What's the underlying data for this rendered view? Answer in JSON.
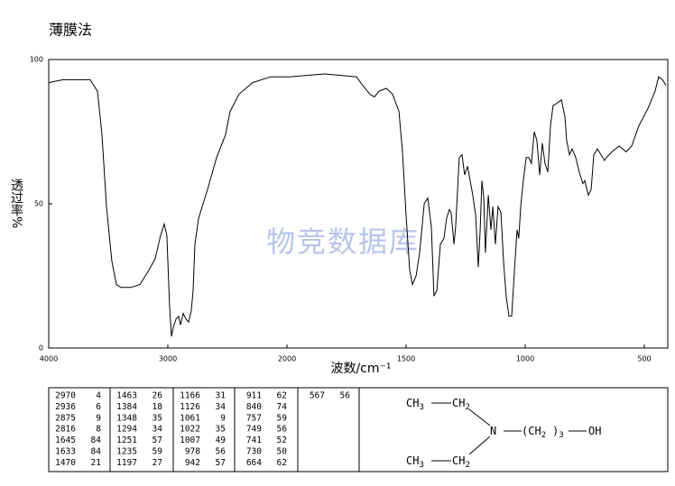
{
  "title": "薄膜法",
  "chart_data": {
    "type": "line",
    "color": "#000000",
    "ylabel": "透过率%",
    "xlabel": "波数/cm⁻¹",
    "watermark": "物竞数据库",
    "xlim": [
      4000,
      400
    ],
    "xticks": [
      4000,
      3000,
      2000,
      1500,
      1000,
      500
    ],
    "ylim": [
      0,
      100
    ],
    "yticks": [
      0,
      50,
      100
    ],
    "x": [
      4000,
      3879,
      3727,
      3652,
      3591,
      3553,
      3515,
      3470,
      3432,
      3394,
      3311,
      3235,
      3159,
      3106,
      3061,
      3030,
      3008,
      2985,
      2970,
      2955,
      2932,
      2909,
      2894,
      2871,
      2848,
      2826,
      2803,
      2788,
      2773,
      2742,
      2667,
      2591,
      2515,
      2477,
      2402,
      2288,
      2136,
      1992,
      1841,
      1708,
      1682,
      1652,
      1633,
      1614,
      1583,
      1557,
      1530,
      1515,
      1500,
      1485,
      1473,
      1458,
      1443,
      1424,
      1409,
      1394,
      1383,
      1371,
      1356,
      1341,
      1330,
      1318,
      1311,
      1299,
      1292,
      1277,
      1265,
      1254,
      1242,
      1231,
      1220,
      1208,
      1197,
      1189,
      1182,
      1174,
      1167,
      1155,
      1144,
      1136,
      1125,
      1114,
      1102,
      1091,
      1080,
      1068,
      1057,
      1045,
      1034,
      1027,
      1019,
      1008,
      996,
      985,
      974,
      962,
      951,
      939,
      928,
      917,
      905,
      894,
      883,
      864,
      848,
      833,
      826,
      814,
      803,
      788,
      773,
      758,
      750,
      735,
      723,
      712,
      697,
      682,
      667,
      659,
      636,
      606,
      576,
      553,
      523,
      485,
      455,
      440,
      424,
      409
    ],
    "values": [
      92,
      93,
      93,
      93,
      89,
      74,
      49,
      30,
      22,
      21,
      21,
      22,
      27,
      31,
      39,
      43,
      39,
      14,
      4,
      7,
      10,
      11,
      8,
      12,
      10,
      9,
      13,
      20,
      36,
      45,
      55,
      66,
      74,
      82,
      88,
      92,
      94,
      94,
      95,
      94,
      91,
      88,
      87,
      89,
      90,
      88,
      82,
      68,
      46,
      27,
      22,
      25,
      33,
      50,
      52,
      42,
      18,
      20,
      36,
      38,
      45,
      48,
      47,
      36,
      42,
      66,
      67,
      60,
      63,
      58,
      53,
      46,
      28,
      41,
      58,
      52,
      33,
      53,
      41,
      49,
      36,
      49,
      47,
      30,
      18,
      11,
      11,
      27,
      41,
      38,
      49,
      58,
      66,
      66,
      64,
      75,
      72,
      60,
      71,
      64,
      61,
      77,
      84,
      85,
      86,
      80,
      72,
      67,
      69,
      66,
      61,
      57,
      58,
      53,
      55,
      67,
      69,
      67,
      65,
      66,
      68,
      70,
      68,
      70,
      77,
      83,
      89,
      94,
      93,
      91
    ]
  },
  "peaks": [
    [
      [
        2970,
        4
      ],
      [
        2936,
        6
      ],
      [
        2875,
        9
      ],
      [
        2816,
        8
      ],
      [
        1645,
        84
      ],
      [
        1633,
        84
      ],
      [
        1470,
        21
      ]
    ],
    [
      [
        1463,
        26
      ],
      [
        1384,
        18
      ],
      [
        1348,
        35
      ],
      [
        1294,
        34
      ],
      [
        1251,
        57
      ],
      [
        1235,
        59
      ],
      [
        1197,
        27
      ]
    ],
    [
      [
        1166,
        31
      ],
      [
        1126,
        34
      ],
      [
        1061,
        9
      ],
      [
        1022,
        35
      ],
      [
        1007,
        49
      ],
      [
        978,
        56
      ],
      [
        942,
        57
      ]
    ],
    [
      [
        911,
        62
      ],
      [
        840,
        74
      ],
      [
        757,
        59
      ],
      [
        749,
        56
      ],
      [
        741,
        52
      ],
      [
        730,
        50
      ],
      [
        664,
        62
      ]
    ],
    [
      [
        567,
        56
      ]
    ]
  ],
  "structure": {
    "groups": [
      {
        "text": "CH",
        "sub": "3"
      },
      {
        "text": "CH",
        "sub": "2"
      },
      {
        "text": "CH",
        "sub": "3"
      },
      {
        "text": "CH",
        "sub": "2"
      },
      {
        "text": "N"
      },
      {
        "text": "(CH",
        "sub": "2"
      },
      {
        "text": ")",
        "sub": "3"
      },
      {
        "text": "OH"
      }
    ]
  }
}
